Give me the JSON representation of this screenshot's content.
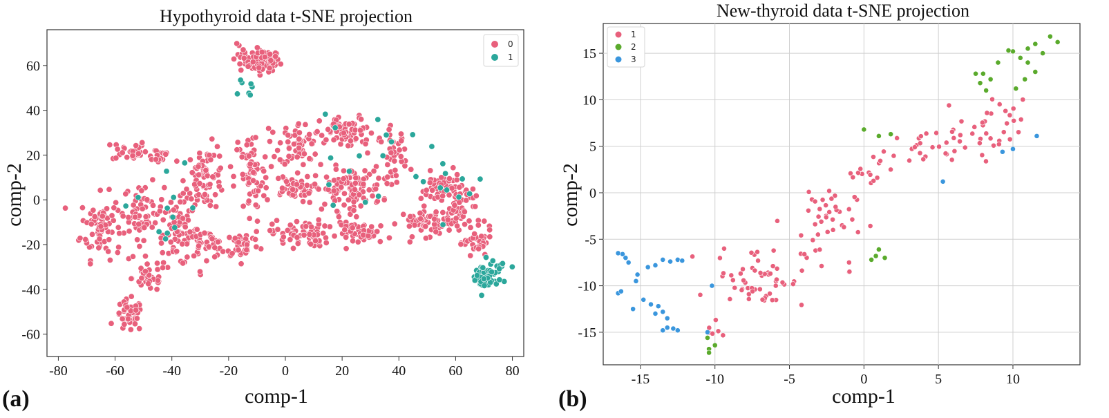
{
  "figure": {
    "panels": [
      {
        "label": "(a)"
      },
      {
        "label": "(b)"
      }
    ]
  },
  "chart_data": [
    {
      "type": "scatter",
      "title": "Hypothyroid data t-SNE projection",
      "xlabel": "comp-1",
      "ylabel": "comp-2",
      "xlim": [
        -84,
        84
      ],
      "ylim": [
        -70,
        76
      ],
      "xticks": [
        -80,
        -60,
        -40,
        -20,
        0,
        20,
        40,
        60,
        80
      ],
      "yticks": [
        -60,
        -40,
        -20,
        0,
        20,
        40,
        60
      ],
      "grid": false,
      "legend": {
        "position": "top-right"
      },
      "series": [
        {
          "name": "0",
          "color": "#e8607c",
          "clusters": [
            {
              "center": [
                -8,
                62
              ],
              "spread": [
                5,
                4
              ],
              "count": 90
            },
            {
              "center": [
                -15,
                62
              ],
              "spread": [
                3,
                6
              ],
              "count": 12
            },
            {
              "center": [
                -55,
                22
              ],
              "spread": [
                5,
                4
              ],
              "count": 30
            },
            {
              "center": [
                -45,
                20
              ],
              "spread": [
                4,
                3
              ],
              "count": 15
            },
            {
              "center": [
                -65,
                -12
              ],
              "spread": [
                6,
                12
              ],
              "count": 80
            },
            {
              "center": [
                -50,
                -5
              ],
              "spread": [
                6,
                10
              ],
              "count": 60
            },
            {
              "center": [
                -38,
                -15
              ],
              "spread": [
                6,
                12
              ],
              "count": 70
            },
            {
              "center": [
                -48,
                -35
              ],
              "spread": [
                5,
                5
              ],
              "count": 35
            },
            {
              "center": [
                -55,
                -52
              ],
              "spread": [
                4,
                6
              ],
              "count": 45
            },
            {
              "center": [
                -28,
                10
              ],
              "spread": [
                6,
                12
              ],
              "count": 80
            },
            {
              "center": [
                -28,
                -20
              ],
              "spread": [
                6,
                5
              ],
              "count": 40
            },
            {
              "center": [
                -12,
                10
              ],
              "spread": [
                5,
                18
              ],
              "count": 70
            },
            {
              "center": [
                -15,
                -20
              ],
              "spread": [
                5,
                5
              ],
              "count": 40
            },
            {
              "center": [
                5,
                25
              ],
              "spread": [
                6,
                8
              ],
              "count": 60
            },
            {
              "center": [
                2,
                5
              ],
              "spread": [
                6,
                5
              ],
              "count": 50
            },
            {
              "center": [
                5,
                -15
              ],
              "spread": [
                8,
                5
              ],
              "count": 70
            },
            {
              "center": [
                22,
                30
              ],
              "spread": [
                8,
                6
              ],
              "count": 70
            },
            {
              "center": [
                22,
                5
              ],
              "spread": [
                10,
                8
              ],
              "count": 110
            },
            {
              "center": [
                28,
                -15
              ],
              "spread": [
                8,
                4
              ],
              "count": 50
            },
            {
              "center": [
                38,
                20
              ],
              "spread": [
                4,
                10
              ],
              "count": 40
            },
            {
              "center": [
                50,
                -10
              ],
              "spread": [
                8,
                5
              ],
              "count": 60
            },
            {
              "center": [
                55,
                5
              ],
              "spread": [
                6,
                6
              ],
              "count": 50
            },
            {
              "center": [
                62,
                -5
              ],
              "spread": [
                6,
                10
              ],
              "count": 50
            },
            {
              "center": [
                68,
                -20
              ],
              "spread": [
                4,
                6
              ],
              "count": 35
            }
          ]
        },
        {
          "name": "1",
          "color": "#2ba79b",
          "clusters": [
            {
              "center": [
                70,
                -35
              ],
              "spread": [
                4,
                6
              ],
              "count": 40
            },
            {
              "center": [
                75,
                -30
              ],
              "spread": [
                4,
                3
              ],
              "count": 15
            },
            {
              "center": [
                -14,
                49
              ],
              "spread": [
                2,
                3
              ],
              "count": 7
            },
            {
              "center": [
                55,
                5
              ],
              "spread": [
                12,
                12
              ],
              "count": 12
            },
            {
              "center": [
                25,
                20
              ],
              "spread": [
                15,
                18
              ],
              "count": 14
            },
            {
              "center": [
                -40,
                0
              ],
              "spread": [
                20,
                20
              ],
              "count": 12
            }
          ]
        }
      ]
    },
    {
      "type": "scatter",
      "title": "New-thyroid data t-SNE projection",
      "xlabel": "comp-1",
      "ylabel": "comp-2",
      "xlim": [
        -17.5,
        14.5
      ],
      "ylim": [
        -18.5,
        18.2
      ],
      "xticks": [
        -15,
        -10,
        -5,
        0,
        5,
        10
      ],
      "yticks": [
        -15,
        -10,
        -5,
        0,
        5,
        10,
        15
      ],
      "grid": true,
      "legend": {
        "position": "top-left"
      },
      "series": [
        {
          "name": "1",
          "color": "#e8607c",
          "clusters": [
            {
              "center": [
                -7,
                -9
              ],
              "spread": [
                2.5,
                2.8
              ],
              "count": 55
            },
            {
              "center": [
                -3,
                -3
              ],
              "spread": [
                2.0,
                3.5
              ],
              "count": 40
            },
            {
              "center": [
                0,
                2
              ],
              "spread": [
                1.5,
                1.5
              ],
              "count": 12
            },
            {
              "center": [
                4,
                4.5
              ],
              "spread": [
                2.5,
                1.8
              ],
              "count": 30
            },
            {
              "center": [
                8.5,
                7
              ],
              "spread": [
                1.8,
                2.5
              ],
              "count": 30
            },
            {
              "center": [
                -10,
                -14.5
              ],
              "spread": [
                0.6,
                1.0
              ],
              "count": 6
            },
            {
              "center": [
                -1,
                -8.5
              ],
              "spread": [
                0.1,
                0.2
              ],
              "count": 2
            }
          ]
        },
        {
          "name": "2",
          "color": "#5aaa2c",
          "points": [
            [
              0,
              6.8
            ],
            [
              1,
              6.1
            ],
            [
              1.8,
              6.3
            ],
            [
              0.5,
              -7.2
            ],
            [
              0.8,
              -6.8
            ],
            [
              1,
              -6.1
            ],
            [
              1.4,
              -7
            ],
            [
              -10.4,
              -16.8
            ],
            [
              -10.4,
              -17.2
            ],
            [
              -10,
              -16.4
            ],
            [
              -10.5,
              -15.6
            ],
            [
              7.5,
              12.8
            ],
            [
              8,
              12.8
            ],
            [
              7.8,
              11.8
            ],
            [
              8.5,
              12.2
            ],
            [
              8.2,
              11
            ],
            [
              9,
              14
            ],
            [
              10,
              15.2
            ],
            [
              10.5,
              14.5
            ],
            [
              11,
              15.5
            ],
            [
              11.5,
              16
            ],
            [
              12,
              15
            ],
            [
              12.5,
              16.8
            ],
            [
              13,
              16.2
            ],
            [
              11,
              14
            ],
            [
              11.5,
              13
            ],
            [
              10.8,
              12.2
            ],
            [
              9.7,
              15.3
            ],
            [
              10.2,
              11.2
            ]
          ]
        },
        {
          "name": "3",
          "color": "#3a96dd",
          "points": [
            [
              -16.5,
              -6.5
            ],
            [
              -16.2,
              -6.6
            ],
            [
              -16,
              -7
            ],
            [
              -15.8,
              -7.5
            ],
            [
              -15.3,
              -9.5
            ],
            [
              -15.2,
              -8.8
            ],
            [
              -14.5,
              -8
            ],
            [
              -14,
              -7.8
            ],
            [
              -13.5,
              -7.2
            ],
            [
              -13,
              -7.4
            ],
            [
              -12.5,
              -7.2
            ],
            [
              -12.2,
              -7.3
            ],
            [
              -16.5,
              -10.8
            ],
            [
              -16.3,
              -10.6
            ],
            [
              -15.5,
              -12.5
            ],
            [
              -14.8,
              -11.5
            ],
            [
              -14.3,
              -12
            ],
            [
              -13.8,
              -12.2
            ],
            [
              -13.5,
              -12.8
            ],
            [
              -13.2,
              -13.5
            ],
            [
              -14,
              -13
            ],
            [
              -13.5,
              -14.8
            ],
            [
              -13.2,
              -14.5
            ],
            [
              -12.8,
              -14.6
            ],
            [
              -12.5,
              -14.8
            ],
            [
              -10.2,
              -10
            ],
            [
              -10.5,
              -15
            ],
            [
              5.3,
              1.2
            ],
            [
              9.3,
              4.4
            ],
            [
              10,
              4.7
            ],
            [
              11.6,
              6.1
            ]
          ]
        }
      ]
    }
  ]
}
